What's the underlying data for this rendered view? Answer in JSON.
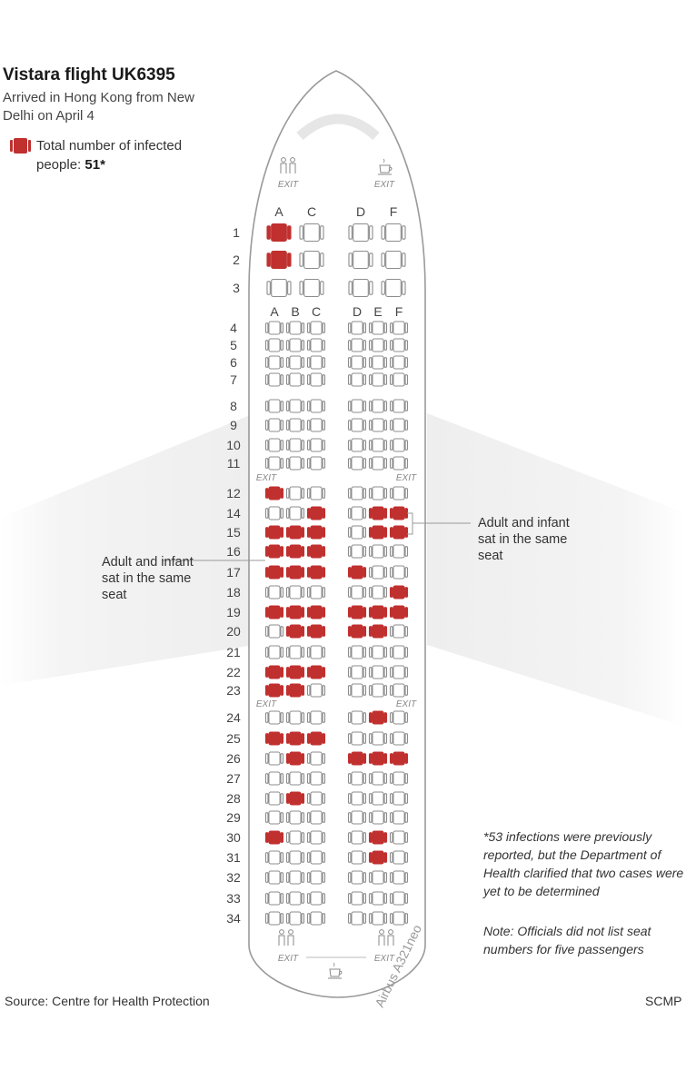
{
  "title": "Vistara flight UK6395",
  "subtitle": "Arrived in Hong Kong from New Delhi on April 4",
  "legend": {
    "label": "Total number of infected people:",
    "count": "51*",
    "color": "#c0302f"
  },
  "exit_label": "EXIT",
  "aircraft_label": "Airbus A321neo",
  "annotation_left": "Adult and infant sat in the same seat",
  "annotation_right": "Adult and infant sat in the same seat",
  "footnote": "*53 infections were previously reported, but the Department of Health clarified that two cases were yet to be determined",
  "note": "Note: Officials did not list seat numbers for five passengers",
  "source": "Source: Centre for Health Protection",
  "credit": "SCMP",
  "colors": {
    "infected": "#c0302f",
    "seat_outline": "#8c8c8c",
    "fuselage": "#9a9a9a",
    "wing": "#f1f1f1"
  },
  "seatmap": {
    "business_columns": [
      "A",
      "C",
      "D",
      "F"
    ],
    "economy_columns": [
      "A",
      "B",
      "C",
      "D",
      "E",
      "F"
    ],
    "business_rows": [
      {
        "row": 1,
        "infected": [
          "A"
        ]
      },
      {
        "row": 2,
        "infected": [
          "A"
        ]
      },
      {
        "row": 3,
        "infected": []
      }
    ],
    "economy_rows": [
      {
        "row": 4,
        "infected": []
      },
      {
        "row": 5,
        "infected": []
      },
      {
        "row": 6,
        "infected": []
      },
      {
        "row": 7,
        "infected": []
      },
      {
        "row": 8,
        "infected": []
      },
      {
        "row": 9,
        "infected": []
      },
      {
        "row": 10,
        "infected": []
      },
      {
        "row": 11,
        "infected": []
      },
      {
        "row": 12,
        "infected": [
          "A"
        ]
      },
      {
        "row": 14,
        "infected": [
          "C",
          "E",
          "F"
        ]
      },
      {
        "row": 15,
        "infected": [
          "A",
          "B",
          "C",
          "E",
          "F"
        ]
      },
      {
        "row": 16,
        "infected": [
          "A",
          "B",
          "C"
        ]
      },
      {
        "row": 17,
        "infected": [
          "A",
          "B",
          "C",
          "D"
        ]
      },
      {
        "row": 18,
        "infected": [
          "F"
        ]
      },
      {
        "row": 19,
        "infected": [
          "A",
          "B",
          "C",
          "D",
          "E",
          "F"
        ]
      },
      {
        "row": 20,
        "infected": [
          "B",
          "C",
          "D",
          "E"
        ]
      },
      {
        "row": 21,
        "infected": []
      },
      {
        "row": 22,
        "infected": [
          "A",
          "B",
          "C"
        ]
      },
      {
        "row": 23,
        "infected": [
          "A",
          "B"
        ]
      },
      {
        "row": 24,
        "infected": [
          "E"
        ]
      },
      {
        "row": 25,
        "infected": [
          "A",
          "B",
          "C"
        ]
      },
      {
        "row": 26,
        "infected": [
          "B",
          "D",
          "E",
          "F"
        ]
      },
      {
        "row": 27,
        "infected": []
      },
      {
        "row": 28,
        "infected": [
          "B"
        ]
      },
      {
        "row": 29,
        "infected": []
      },
      {
        "row": 30,
        "infected": [
          "A",
          "E"
        ]
      },
      {
        "row": 31,
        "infected": [
          "E"
        ]
      },
      {
        "row": 32,
        "infected": []
      },
      {
        "row": 33,
        "infected": []
      },
      {
        "row": 34,
        "infected": []
      }
    ]
  }
}
